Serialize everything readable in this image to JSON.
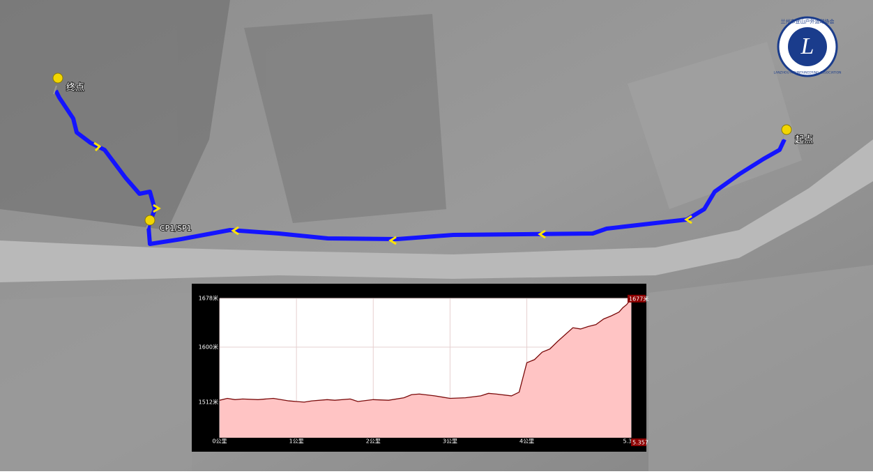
{
  "map": {
    "labels": {
      "start": "起点",
      "end": "终点",
      "checkpoint": "CP1/SP1"
    },
    "logo": {
      "letter": "L",
      "name": "兰州市登山户外运动协会",
      "name_en": "LANZHOU MOUNTAINEERING ASSOCIATION"
    }
  },
  "chart_data": {
    "type": "area",
    "x": [
      0,
      0.1,
      0.2,
      0.3,
      0.5,
      0.7,
      0.9,
      1.0,
      1.1,
      1.2,
      1.4,
      1.5,
      1.7,
      1.8,
      2.0,
      2.2,
      2.4,
      2.5,
      2.6,
      2.8,
      3.0,
      3.2,
      3.4,
      3.5,
      3.6,
      3.8,
      3.9,
      4.0,
      4.1,
      4.2,
      4.3,
      4.4,
      4.5,
      4.6,
      4.7,
      4.8,
      4.9,
      5.0,
      5.1,
      5.2,
      5.25,
      5.3,
      5.357
    ],
    "series": [
      {
        "color": "#7a0a0a",
        "values": [
          1515,
          1518,
          1516,
          1517,
          1516,
          1518,
          1514,
          1513,
          1512,
          1514,
          1516,
          1515,
          1517,
          1513,
          1516,
          1515,
          1519,
          1524,
          1525,
          1522,
          1518,
          1519,
          1522,
          1526,
          1525,
          1522,
          1528,
          1575,
          1580,
          1592,
          1597,
          1609,
          1620,
          1631,
          1629,
          1633,
          1636,
          1645,
          1650,
          1656,
          1663,
          1668,
          1677
        ]
      }
    ],
    "area_color": "#ffc4c4",
    "xlim": [
      0,
      5.357
    ],
    "ylim": [
      1455,
      1678
    ],
    "xticks": [
      {
        "value": 0,
        "label": "0公里"
      },
      {
        "value": 1,
        "label": "1公里"
      },
      {
        "value": 2,
        "label": "2公里"
      },
      {
        "value": 3,
        "label": "3公里"
      },
      {
        "value": 4,
        "label": "4公里"
      },
      {
        "value": 5.357,
        "label": "5.357"
      }
    ],
    "yticks": [
      {
        "value": 1512,
        "label": "1512米"
      },
      {
        "value": 1600,
        "label": "1600米"
      },
      {
        "value": 1678,
        "label": "1678米"
      }
    ],
    "grid": true,
    "end_labels": {
      "elevation": "1677米",
      "distance": "5.357"
    }
  }
}
